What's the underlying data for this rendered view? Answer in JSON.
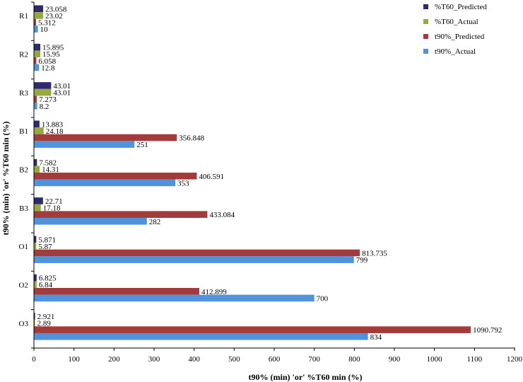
{
  "chart_data": {
    "type": "bar",
    "orientation": "horizontal",
    "categories": [
      "R1",
      "R2",
      "R3",
      "B1",
      "B2",
      "B3",
      "O1",
      "O2",
      "O3"
    ],
    "series": [
      {
        "name": "%T60_Predicted",
        "color": "#2e2a6e",
        "values": [
          23.058,
          15.895,
          43.01,
          13.883,
          7.582,
          22.71,
          5.871,
          6.825,
          2.921
        ]
      },
      {
        "name": "%T60_Actual",
        "color": "#97a83e",
        "values": [
          23.02,
          15.95,
          43.01,
          24.18,
          14.31,
          17.18,
          5.87,
          6.84,
          2.89
        ]
      },
      {
        "name": "t90%_Predicted",
        "color": "#a23b3a",
        "values": [
          5.312,
          6.058,
          7.273,
          356.848,
          406.591,
          433.084,
          813.735,
          412.899,
          1090.792
        ]
      },
      {
        "name": "t90%_Actual",
        "color": "#4f93dc",
        "values": [
          10,
          12.8,
          8.2,
          251,
          353,
          282,
          799,
          700,
          834
        ]
      }
    ],
    "value_labels": [
      [
        "23.058",
        "15.895",
        "43.01",
        "13.883",
        "7.582",
        "22.71",
        "5.871",
        "6.825",
        "2.921"
      ],
      [
        "23.02",
        "15.95",
        "43.01",
        "24.18",
        "14.31",
        "17.18",
        "5.87",
        "6.84",
        "2.89"
      ],
      [
        "5.312",
        "6.058",
        "7.273",
        "356.848",
        "406.591",
        "433.084",
        "813.735",
        "412.899",
        "1090.792"
      ],
      [
        "10",
        "12.8",
        "8.2",
        "251",
        "353",
        "282",
        "799",
        "700",
        "834"
      ]
    ],
    "xlabel": "t90% (min) 'or' %T60 min (%)",
    "ylabel": "t90% (min) 'or' %T60 min (%)",
    "xlim": [
      0,
      1200
    ],
    "xticks": [
      "0",
      "100",
      "200",
      "300",
      "400",
      "500",
      "600",
      "700",
      "800",
      "900",
      "1000",
      "1100",
      "1200"
    ],
    "grid": false,
    "legend_position": "top-right"
  }
}
